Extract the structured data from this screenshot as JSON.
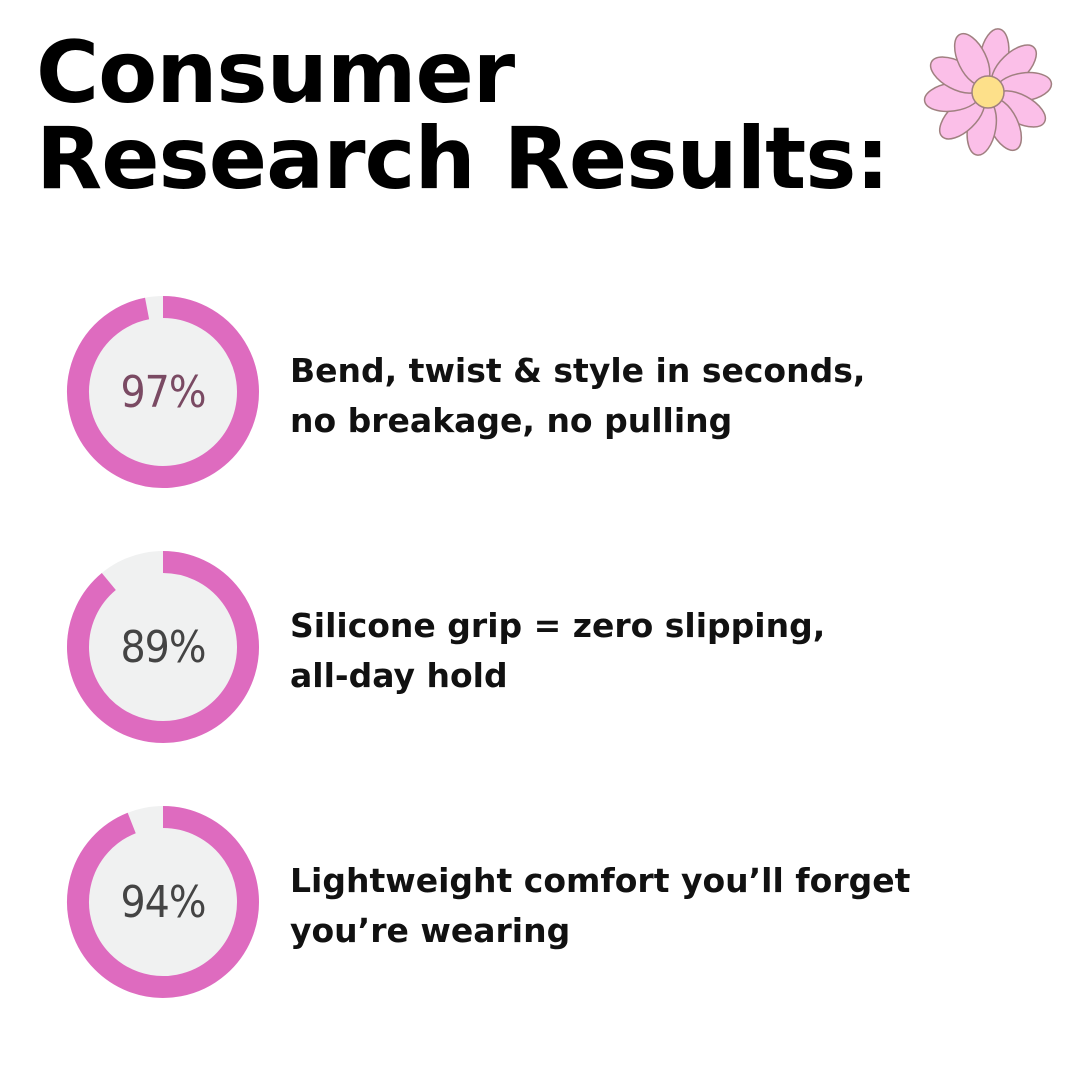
{
  "header": {
    "title_line1": "Consumer",
    "title_line2": "Research Results:"
  },
  "colors": {
    "accent": "#de6bbf",
    "track": "#f0f1f1",
    "first_value_text": "#7a4a63",
    "value_text": "#444444",
    "flower_petal": "#fbbfe8",
    "flower_center": "#fde08a"
  },
  "decoration": {
    "icon": "daisy-flower-icon"
  },
  "stats": [
    {
      "percent": 97,
      "label": "97%",
      "line1": "Bend, twist & style in seconds,",
      "line2": "no breakage, no pulling"
    },
    {
      "percent": 89,
      "label": "89%",
      "line1": "Silicone grip = zero slipping,",
      "line2": "all-day hold"
    },
    {
      "percent": 94,
      "label": "94%",
      "line1": "Lightweight comfort you’ll forget",
      "line2": "you’re wearing"
    }
  ]
}
